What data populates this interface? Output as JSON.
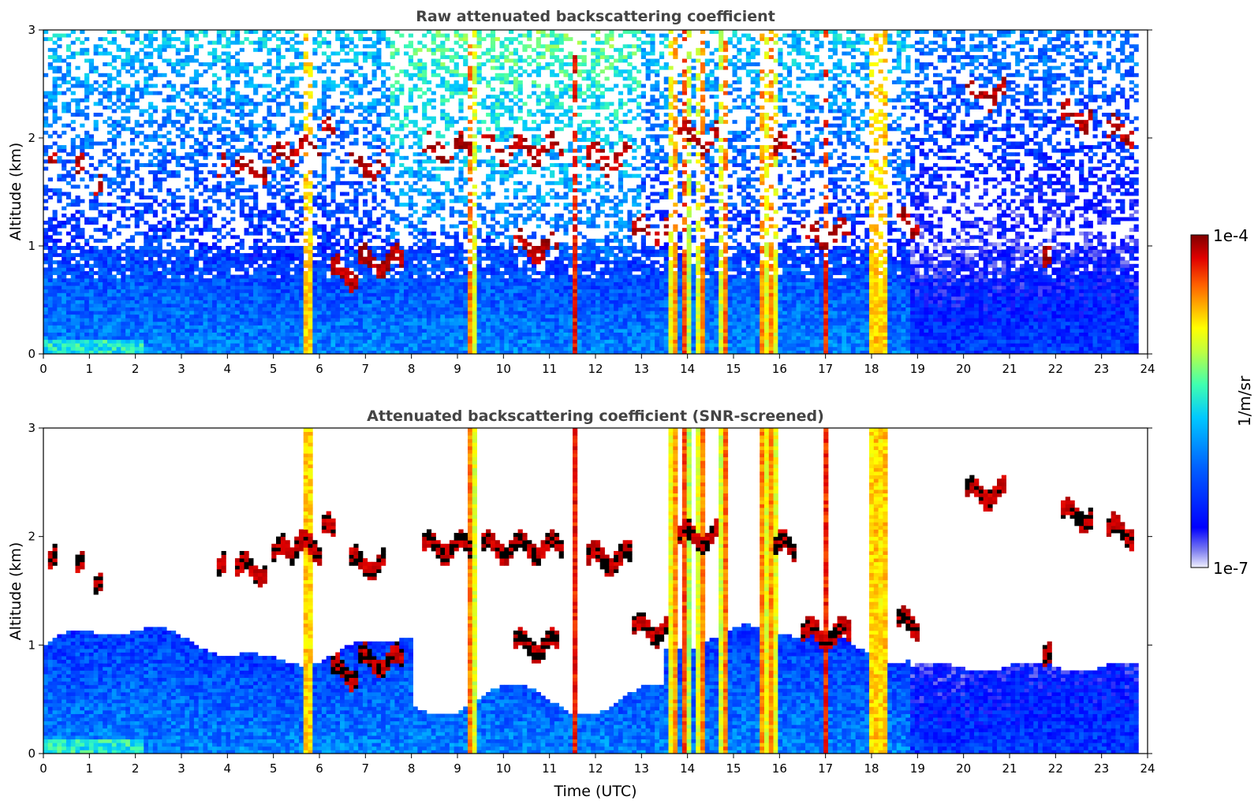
{
  "chart_data": [
    {
      "type": "heatmap",
      "title": "Raw attenuated backscattering coefficient",
      "xlabel": "",
      "ylabel": "Altitude (km)",
      "xlim": [
        0,
        24
      ],
      "ylim": [
        0,
        3
      ],
      "xticks": [
        "0",
        "1",
        "2",
        "3",
        "4",
        "5",
        "6",
        "7",
        "8",
        "9",
        "10",
        "11",
        "12",
        "13",
        "14",
        "15",
        "16",
        "17",
        "18",
        "19",
        "20",
        "21",
        "22",
        "23",
        "24"
      ],
      "yticks": [
        "0",
        "1",
        "2",
        "3"
      ],
      "screened": false,
      "data_end_hour": 23.8,
      "colorscale": "jet",
      "features": {
        "boundary_layer_top_km": 1.0,
        "cloud_layers": [
          {
            "t_start": 0.1,
            "t_end": 0.3,
            "alt_km": 1.75
          },
          {
            "t_start": 0.65,
            "t_end": 0.85,
            "alt_km": 1.7
          },
          {
            "t_start": 1.05,
            "t_end": 1.25,
            "alt_km": 1.5
          },
          {
            "t_start": 3.8,
            "t_end": 4.0,
            "alt_km": 1.7
          },
          {
            "t_start": 4.2,
            "t_end": 4.9,
            "alt_km": 1.7
          },
          {
            "t_start": 5.0,
            "t_end": 5.5,
            "alt_km": 1.85
          },
          {
            "t_start": 5.5,
            "t_end": 6.0,
            "alt_km": 1.9
          },
          {
            "t_start": 6.0,
            "t_end": 6.3,
            "alt_km": 2.05
          },
          {
            "t_start": 6.2,
            "t_end": 6.8,
            "alt_km": 0.75
          },
          {
            "t_start": 6.6,
            "t_end": 7.4,
            "alt_km": 1.75
          },
          {
            "t_start": 6.8,
            "t_end": 7.8,
            "alt_km": 0.85
          },
          {
            "t_start": 8.2,
            "t_end": 9.3,
            "alt_km": 1.9
          },
          {
            "t_start": 9.5,
            "t_end": 11.3,
            "alt_km": 1.9
          },
          {
            "t_start": 10.2,
            "t_end": 11.2,
            "alt_km": 1.0
          },
          {
            "t_start": 11.8,
            "t_end": 12.8,
            "alt_km": 1.8
          },
          {
            "t_start": 12.8,
            "t_end": 13.6,
            "alt_km": 1.15
          },
          {
            "t_start": 13.8,
            "t_end": 14.7,
            "alt_km": 2.0
          },
          {
            "t_start": 15.9,
            "t_end": 16.4,
            "alt_km": 1.9
          },
          {
            "t_start": 16.5,
            "t_end": 17.6,
            "alt_km": 1.1
          },
          {
            "t_start": 18.5,
            "t_end": 19.0,
            "alt_km": 1.2
          },
          {
            "t_start": 20.0,
            "t_end": 20.9,
            "alt_km": 2.4
          },
          {
            "t_start": 21.7,
            "t_end": 21.9,
            "alt_km": 0.85
          },
          {
            "t_start": 22.1,
            "t_end": 22.8,
            "alt_km": 2.2
          },
          {
            "t_start": 23.1,
            "t_end": 23.7,
            "alt_km": 2.05
          }
        ],
        "vertical_columns_hours": [
          5.75,
          9.3,
          11.55,
          13.7,
          13.95,
          14.3,
          14.8,
          15.65,
          15.85,
          17.0,
          18.05,
          18.25
        ]
      }
    },
    {
      "type": "heatmap",
      "title": "Attenuated backscattering coefficient (SNR-screened)",
      "xlabel": "Time (UTC)",
      "ylabel": "Altitude (km)",
      "xlim": [
        0,
        24
      ],
      "ylim": [
        0,
        3
      ],
      "xticks": [
        "0",
        "1",
        "2",
        "3",
        "4",
        "5",
        "6",
        "7",
        "8",
        "9",
        "10",
        "11",
        "12",
        "13",
        "14",
        "15",
        "16",
        "17",
        "18",
        "19",
        "20",
        "21",
        "22",
        "23",
        "24"
      ],
      "yticks": [
        "0",
        "1",
        "2",
        "3"
      ],
      "screened": true,
      "data_end_hour": 23.8,
      "colorscale": "jet"
    }
  ],
  "colorbar": {
    "max_label": "1e-4",
    "min_label": "1e-7",
    "unit_label": "1/m/sr",
    "scale": "log"
  }
}
